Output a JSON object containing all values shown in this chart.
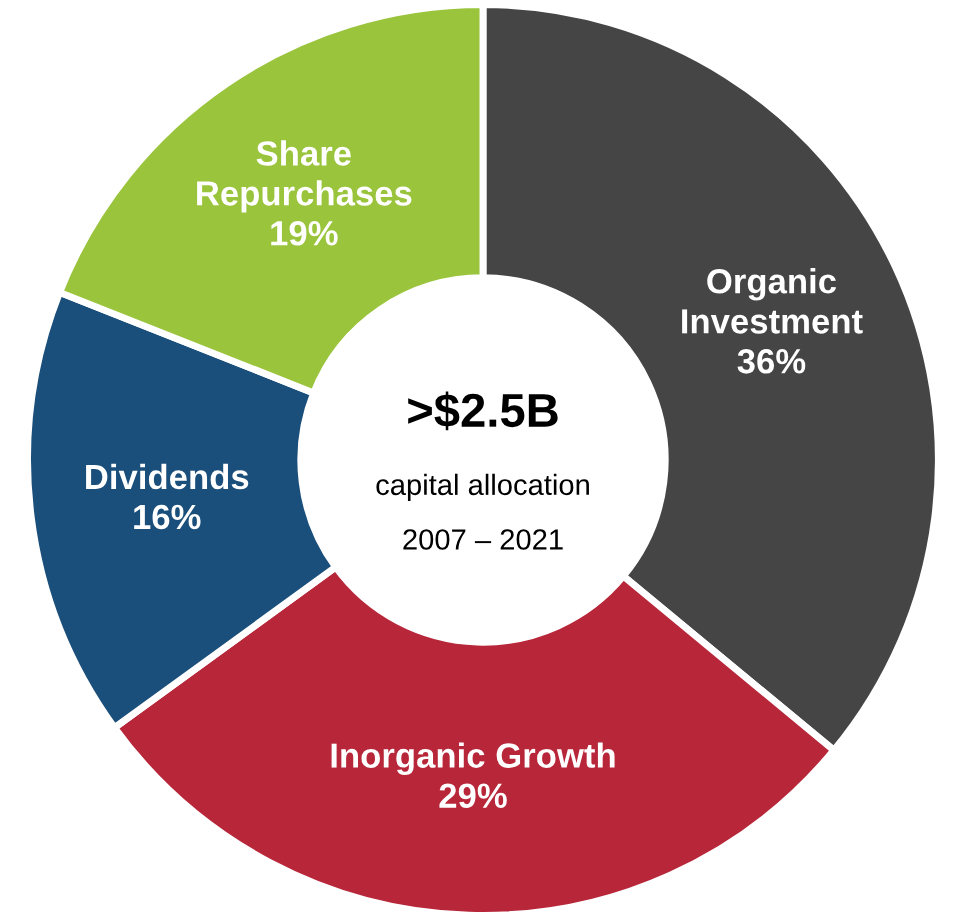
{
  "chart_data": {
    "type": "donut",
    "categories": [
      "Organic Investment",
      "Inorganic Growth",
      "Dividends",
      "Share Repurchases"
    ],
    "values": [
      36,
      29,
      16,
      19
    ],
    "value_labels": [
      "36%",
      "29%",
      "16%",
      "19%"
    ],
    "colors": [
      "#454545",
      "#b8263a",
      "#1b4f7b",
      "#9ac43c"
    ],
    "annotations": [
      ">$2.5B",
      "capital allocation",
      "2007 – 2021"
    ],
    "legend": false
  }
}
